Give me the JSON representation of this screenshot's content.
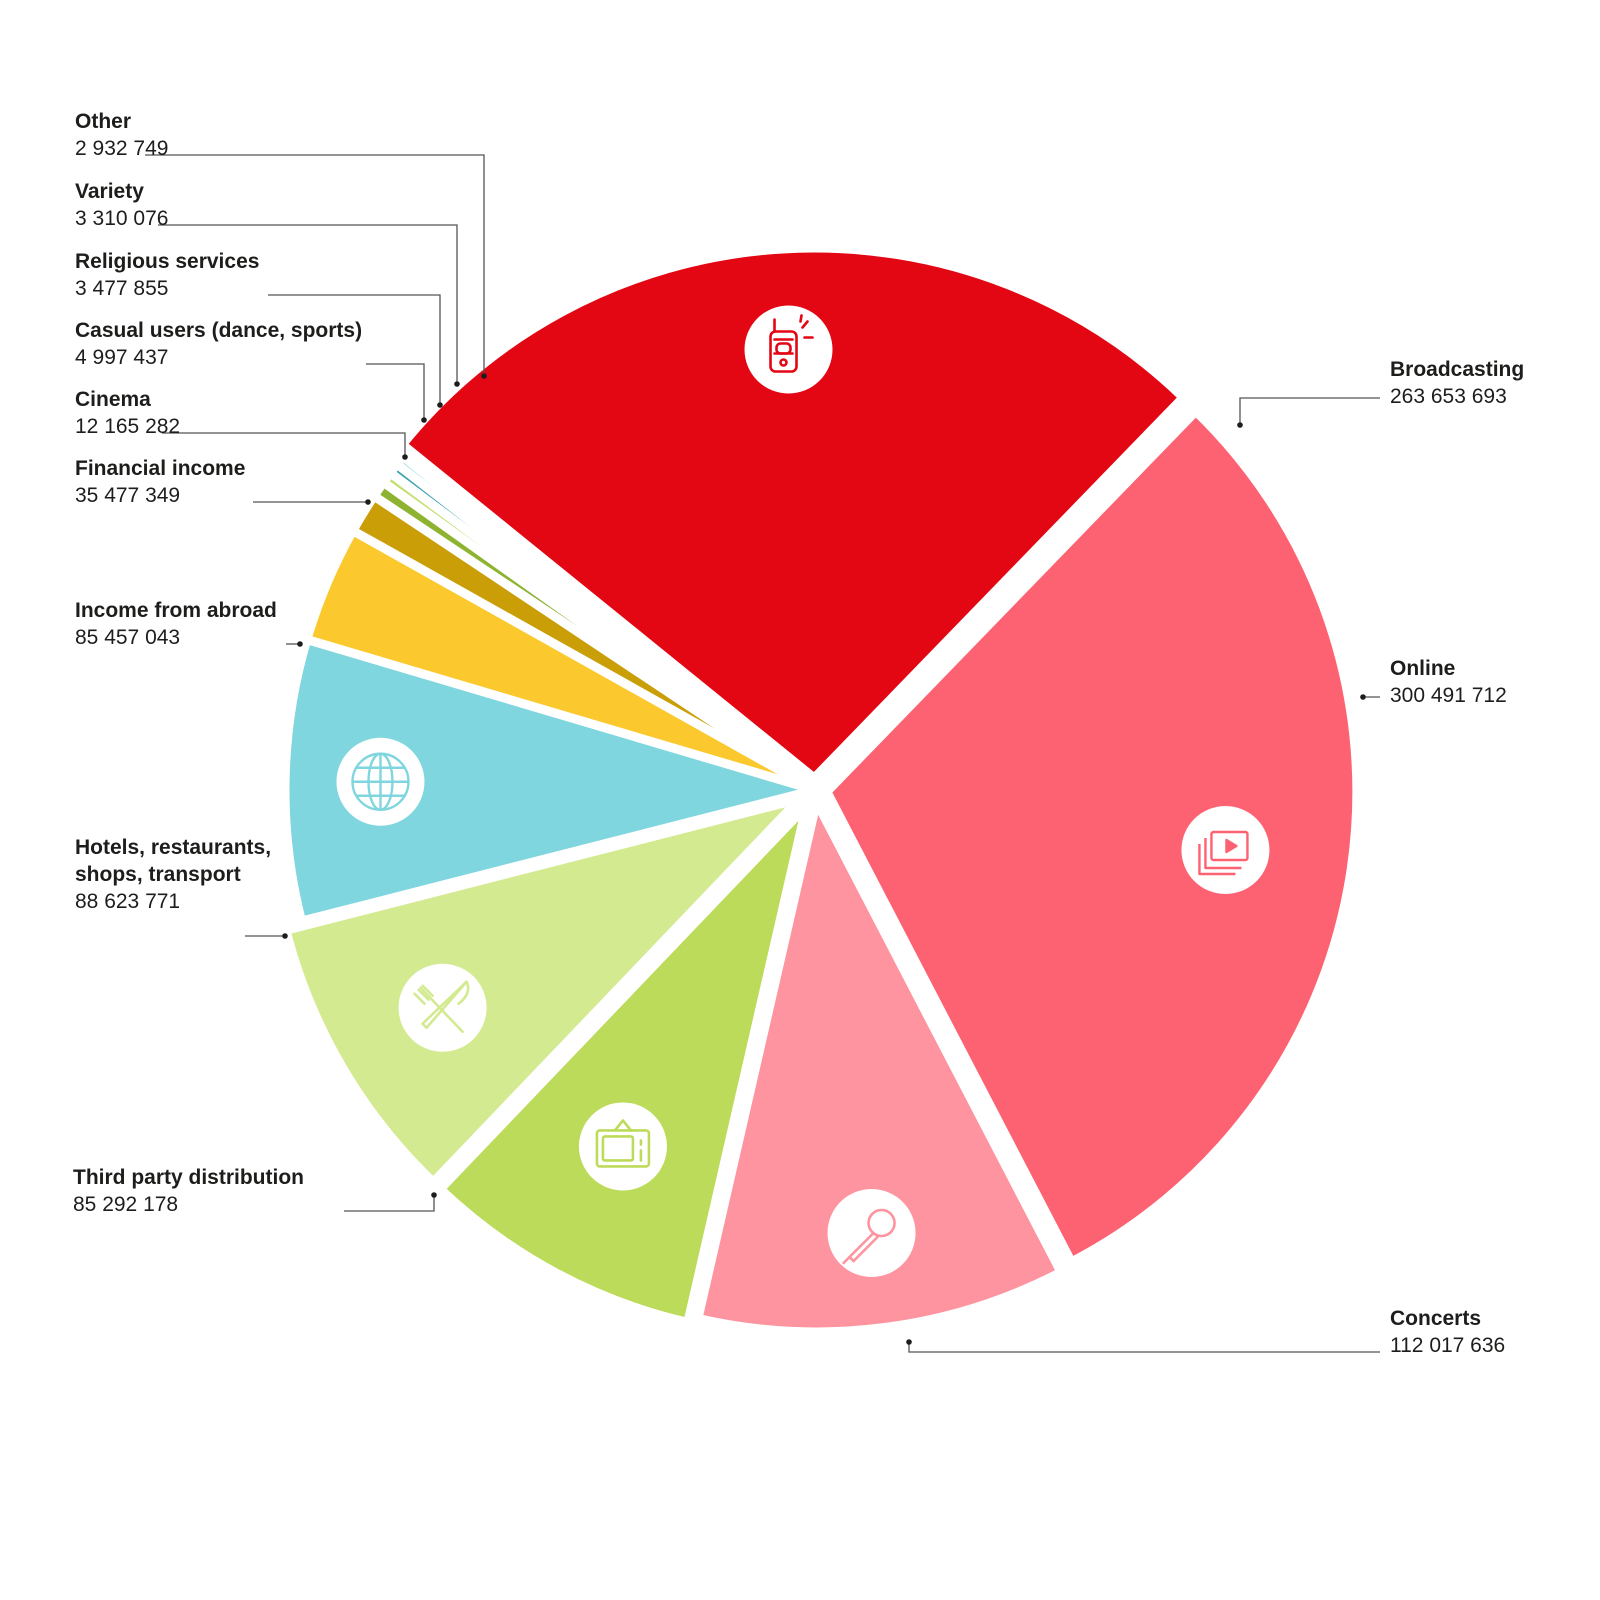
{
  "chart_data": {
    "type": "pie",
    "title": "",
    "slices": [
      {
        "label": "Broadcasting",
        "value": 263653693,
        "value_text": "263 653 693",
        "color": "#e30613",
        "icon": "radio-icon"
      },
      {
        "label": "Online",
        "value": 300491712,
        "value_text": "300 491 712",
        "color": "#fd6272",
        "icon": "video-play-icon"
      },
      {
        "label": "Concerts",
        "value": 112017636,
        "value_text": "112 017 636",
        "color": "#fd949f",
        "icon": "microphone-icon"
      },
      {
        "label": "Third party distribution",
        "value": 85292178,
        "value_text": "85 292 178",
        "color": "#bddb5a",
        "icon": "tv-icon"
      },
      {
        "label": "Hotels, restaurants, shops, transport",
        "label_lines": [
          "Hotels, restaurants,",
          "shops, transport"
        ],
        "value": 88623771,
        "value_text": "88 623 771",
        "color": "#d4ea91",
        "icon": "fork-knife-icon"
      },
      {
        "label": "Income from abroad",
        "value": 85457043,
        "value_text": "85 457 043",
        "color": "#7fd6df",
        "icon": "globe-icon"
      },
      {
        "label": "Financial income",
        "value": 35477349,
        "value_text": "35 477 349",
        "color": "#fbc92d"
      },
      {
        "label": "Cinema",
        "value": 12165282,
        "value_text": "12 165 282",
        "color": "#c99e06"
      },
      {
        "label": "Casual users (dance, sports)",
        "value": 4997437,
        "value_text": "4 997 437",
        "color": "#8db331"
      },
      {
        "label": "Religious services",
        "value": 3477855,
        "value_text": "3 477 855",
        "color": "#c2de6e"
      },
      {
        "label": "Variety",
        "value": 3310076,
        "value_text": "3 310 076",
        "color": "#3aa3ae"
      },
      {
        "label": "Other",
        "value": 2932749,
        "value_text": "2 932 749",
        "color": "#7fd6df"
      }
    ]
  }
}
